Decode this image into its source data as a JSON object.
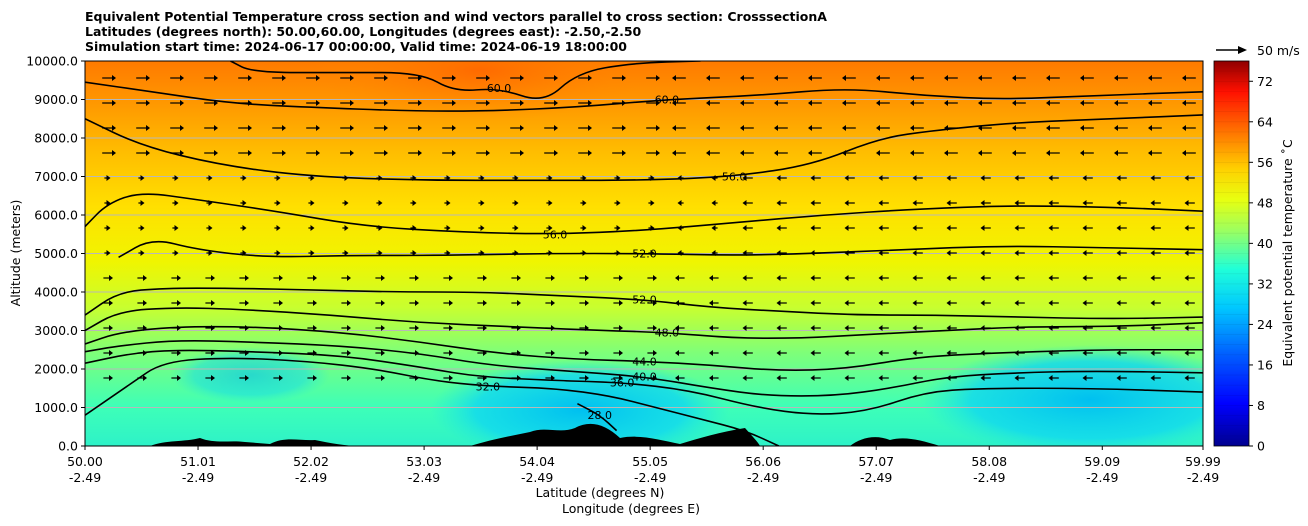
{
  "chart_data": {
    "type": "heatmap",
    "title_lines": [
      "Equivalent Potential Temperature cross section and wind vectors parallel to cross section: CrosssectionA",
      "Latitudes (degrees north): 50.00,60.00, Longitudes (degrees east): -2.50,-2.50",
      "Simulation start time: 2024-06-17 00:00:00, Valid time: 2024-06-19 18:00:00"
    ],
    "xlabel_lines": [
      "Latitude (degrees N)",
      "Longitude (degrees E)"
    ],
    "ylabel": "Altitude (meters)",
    "x_ticks": [
      {
        "lat": "50.00",
        "lon": "-2.49"
      },
      {
        "lat": "51.01",
        "lon": "-2.49"
      },
      {
        "lat": "52.02",
        "lon": "-2.49"
      },
      {
        "lat": "53.03",
        "lon": "-2.49"
      },
      {
        "lat": "54.04",
        "lon": "-2.49"
      },
      {
        "lat": "55.05",
        "lon": "-2.49"
      },
      {
        "lat": "56.06",
        "lon": "-2.49"
      },
      {
        "lat": "57.07",
        "lon": "-2.49"
      },
      {
        "lat": "58.08",
        "lon": "-2.49"
      },
      {
        "lat": "59.09",
        "lon": "-2.49"
      },
      {
        "lat": "59.99",
        "lon": "-2.49"
      }
    ],
    "x_tick_values": [
      50.0,
      51.01,
      52.02,
      53.03,
      54.04,
      55.05,
      56.06,
      57.07,
      58.08,
      59.09,
      59.99
    ],
    "xlim": [
      50.0,
      59.99
    ],
    "ylim": [
      0,
      10000
    ],
    "y_ticks": [
      "0.0",
      "1000.0",
      "2000.0",
      "3000.0",
      "4000.0",
      "5000.0",
      "6000.0",
      "7000.0",
      "8000.0",
      "9000.0",
      "10000.0"
    ],
    "y_tick_values": [
      0,
      1000,
      2000,
      3000,
      4000,
      5000,
      6000,
      7000,
      8000,
      9000,
      10000
    ],
    "grid": "horizontal",
    "colorbar": {
      "label": "Equivalent potential temperature ˚C",
      "range": [
        0,
        76
      ],
      "ticks": [
        "0",
        "8",
        "16",
        "24",
        "32",
        "40",
        "48",
        "56",
        "64",
        "72"
      ],
      "colormap": "jet"
    },
    "quiver_key": "50 m/s",
    "contours": [
      {
        "level": 28.0,
        "label": "28.0",
        "points": [
          [
            54.4,
            1100
          ],
          [
            54.6,
            800
          ],
          [
            54.75,
            400
          ]
        ]
      },
      {
        "level": 32.0,
        "label": "32.0",
        "points": [
          [
            50.0,
            800
          ],
          [
            50.4,
            1600
          ],
          [
            50.7,
            2200
          ],
          [
            51.3,
            2300
          ],
          [
            52.0,
            2200
          ],
          [
            52.6,
            2000
          ],
          [
            53.1,
            1700
          ],
          [
            53.6,
            1550
          ],
          [
            54.2,
            1500
          ],
          [
            54.7,
            1300
          ],
          [
            55.1,
            1000
          ],
          [
            55.5,
            700
          ],
          [
            55.9,
            400
          ],
          [
            56.2,
            0
          ]
        ]
      },
      {
        "level": 36.0,
        "label": "36.0",
        "points": [
          [
            50.0,
            2150
          ],
          [
            50.4,
            2400
          ],
          [
            50.8,
            2500
          ],
          [
            51.5,
            2450
          ],
          [
            52.3,
            2350
          ],
          [
            53.0,
            2050
          ],
          [
            53.5,
            1800
          ],
          [
            54.2,
            1700
          ],
          [
            54.8,
            1650
          ],
          [
            55.4,
            1450
          ],
          [
            56.0,
            1000
          ],
          [
            56.5,
            800
          ],
          [
            57.0,
            900
          ],
          [
            57.5,
            1400
          ],
          [
            58.0,
            1500
          ],
          [
            59.0,
            1500
          ],
          [
            59.99,
            1400
          ]
        ]
      },
      {
        "level": 40.0,
        "label": "40.0",
        "points": [
          [
            50.0,
            2450
          ],
          [
            50.3,
            2600
          ],
          [
            50.8,
            2750
          ],
          [
            51.5,
            2700
          ],
          [
            52.3,
            2600
          ],
          [
            53.0,
            2400
          ],
          [
            53.6,
            2100
          ],
          [
            54.3,
            1950
          ],
          [
            55.0,
            1800
          ],
          [
            55.6,
            1500
          ],
          [
            56.1,
            1300
          ],
          [
            56.7,
            1300
          ],
          [
            57.2,
            1500
          ],
          [
            57.7,
            1800
          ],
          [
            58.3,
            1900
          ],
          [
            59.0,
            1950
          ],
          [
            59.99,
            1900
          ]
        ]
      },
      {
        "level": 44.0,
        "label": "44.0",
        "points": [
          [
            50.0,
            2650
          ],
          [
            50.3,
            2950
          ],
          [
            50.8,
            3100
          ],
          [
            51.5,
            3100
          ],
          [
            52.3,
            2950
          ],
          [
            53.0,
            2700
          ],
          [
            53.7,
            2400
          ],
          [
            54.4,
            2250
          ],
          [
            55.0,
            2200
          ],
          [
            55.6,
            2100
          ],
          [
            56.2,
            1950
          ],
          [
            56.8,
            2000
          ],
          [
            57.4,
            2300
          ],
          [
            58.0,
            2400
          ],
          [
            59.0,
            2500
          ],
          [
            59.99,
            2500
          ]
        ]
      },
      {
        "level": 48.0,
        "label": "48.0",
        "points": [
          [
            50.0,
            3000
          ],
          [
            50.3,
            3500
          ],
          [
            50.8,
            3600
          ],
          [
            51.4,
            3550
          ],
          [
            52.2,
            3400
          ],
          [
            53.0,
            3200
          ],
          [
            53.8,
            3100
          ],
          [
            54.6,
            3000
          ],
          [
            55.2,
            2950
          ],
          [
            55.8,
            2800
          ],
          [
            56.4,
            2800
          ],
          [
            57.0,
            2900
          ],
          [
            57.7,
            3000
          ],
          [
            58.4,
            3100
          ],
          [
            59.2,
            3100
          ],
          [
            59.99,
            3200
          ]
        ]
      },
      {
        "level": 52.0,
        "label": "52.0",
        "points": [
          [
            50.0,
            3400
          ],
          [
            50.3,
            4000
          ],
          [
            50.7,
            4100
          ],
          [
            51.3,
            4100
          ],
          [
            52.1,
            4050
          ],
          [
            52.8,
            4000
          ],
          [
            53.5,
            4000
          ],
          [
            54.3,
            3900
          ],
          [
            55.0,
            3800
          ],
          [
            55.6,
            3600
          ],
          [
            56.2,
            3500
          ],
          [
            56.9,
            3400
          ],
          [
            57.6,
            3400
          ],
          [
            58.3,
            3350
          ],
          [
            59.2,
            3300
          ],
          [
            59.99,
            3350
          ]
        ]
      },
      {
        "level": 52.0,
        "label": "52.0",
        "points": [
          [
            50.3,
            4900
          ],
          [
            50.6,
            5400
          ],
          [
            51.0,
            5100
          ],
          [
            51.6,
            4900
          ],
          [
            52.4,
            4950
          ],
          [
            53.2,
            4950
          ],
          [
            54.1,
            5000
          ],
          [
            55.0,
            5000
          ],
          [
            55.8,
            4950
          ],
          [
            56.5,
            5000
          ],
          [
            57.3,
            5100
          ],
          [
            58.2,
            5200
          ],
          [
            59.1,
            5150
          ],
          [
            59.99,
            5100
          ]
        ]
      },
      {
        "level": 56.0,
        "label": "56.0",
        "points": [
          [
            50.0,
            5700
          ],
          [
            50.2,
            6300
          ],
          [
            50.5,
            6600
          ],
          [
            51.0,
            6400
          ],
          [
            51.7,
            6100
          ],
          [
            52.5,
            5700
          ],
          [
            53.4,
            5550
          ],
          [
            54.2,
            5500
          ],
          [
            55.0,
            5600
          ],
          [
            55.8,
            5800
          ],
          [
            56.6,
            6000
          ],
          [
            57.4,
            6150
          ],
          [
            58.3,
            6250
          ],
          [
            59.2,
            6200
          ],
          [
            59.99,
            6100
          ]
        ]
      },
      {
        "level": 56.0,
        "label": "56.0",
        "points": [
          [
            50.0,
            8500
          ],
          [
            50.5,
            7800
          ],
          [
            51.2,
            7300
          ],
          [
            52.0,
            7000
          ],
          [
            53.0,
            6900
          ],
          [
            54.0,
            6900
          ],
          [
            55.0,
            6900
          ],
          [
            55.8,
            7000
          ],
          [
            56.5,
            7300
          ],
          [
            57.1,
            8000
          ],
          [
            57.6,
            8200
          ],
          [
            58.3,
            8400
          ],
          [
            59.2,
            8500
          ],
          [
            59.99,
            8600
          ]
        ]
      },
      {
        "level": 60.0,
        "label": "60.0",
        "points": [
          [
            50.0,
            9450
          ],
          [
            50.6,
            9200
          ],
          [
            51.3,
            8900
          ],
          [
            52.0,
            8800
          ],
          [
            52.9,
            8700
          ],
          [
            53.6,
            8700
          ],
          [
            54.4,
            8800
          ],
          [
            55.2,
            9000
          ],
          [
            56.0,
            9100
          ],
          [
            56.8,
            9300
          ],
          [
            57.5,
            9100
          ],
          [
            58.2,
            9000
          ],
          [
            59.0,
            9100
          ],
          [
            59.99,
            9200
          ]
        ]
      },
      {
        "level": 60.0,
        "label": "60.0",
        "points": [
          [
            51.3,
            10000
          ],
          [
            51.5,
            9700
          ],
          [
            52.3,
            9700
          ],
          [
            53.0,
            9700
          ],
          [
            53.3,
            9200
          ],
          [
            53.7,
            9300
          ],
          [
            54.1,
            8900
          ],
          [
            54.4,
            9700
          ],
          [
            54.9,
            9950
          ],
          [
            55.5,
            10000
          ]
        ]
      }
    ]
  }
}
